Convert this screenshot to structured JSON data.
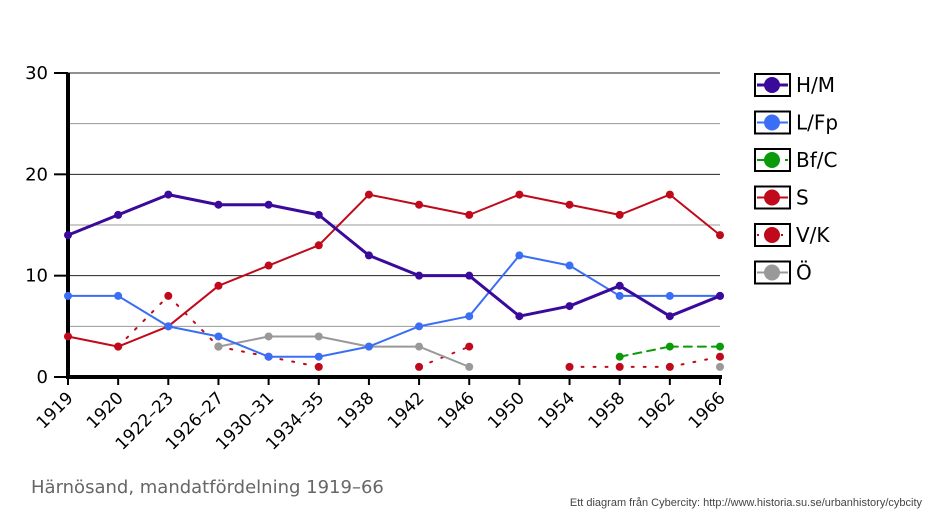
{
  "chart_data": {
    "type": "line",
    "subtitle": "Härnösand, mandatfördelning 1919–66",
    "credit": "Ett diagram från Cybercity: http://www.historia.su.se/urbanhistory/cybcity",
    "categories": [
      "1919",
      "1920",
      "1922–23",
      "1926–27",
      "1930–31",
      "1934–35",
      "1938",
      "1942",
      "1946",
      "1950",
      "1954",
      "1958",
      "1962",
      "1966"
    ],
    "ylim": [
      0,
      30
    ],
    "yticks": [
      0,
      10,
      20,
      30
    ],
    "grid": true,
    "legend": "right",
    "series": [
      {
        "name": "H/M",
        "color": "#3a0a9a",
        "style": "solid",
        "width": 3,
        "values": [
          14,
          16,
          18,
          17,
          17,
          16,
          12,
          10,
          10,
          6,
          7,
          9,
          6,
          8
        ]
      },
      {
        "name": "L/Fp",
        "color": "#3a6ef5",
        "style": "solid",
        "width": 2,
        "values": [
          8,
          8,
          5,
          4,
          2,
          2,
          3,
          5,
          6,
          12,
          11,
          8,
          8,
          8
        ]
      },
      {
        "name": "Bf/C",
        "color": "#0a9a0a",
        "style": "dashed",
        "width": 2,
        "values": [
          null,
          null,
          null,
          null,
          null,
          null,
          null,
          null,
          null,
          null,
          null,
          2,
          3,
          3
        ]
      },
      {
        "name": "S",
        "color": "#c0091a",
        "style": "solid",
        "width": 2,
        "values": [
          4,
          3,
          5,
          9,
          11,
          13,
          18,
          17,
          16,
          18,
          17,
          16,
          18,
          14
        ]
      },
      {
        "name": "V/K",
        "color": "#c0091a",
        "style": "dotted",
        "width": 2,
        "values": [
          null,
          3,
          8,
          3,
          2,
          1,
          null,
          1,
          3,
          null,
          1,
          1,
          1,
          2
        ]
      },
      {
        "name": "Ö",
        "color": "#999999",
        "style": "solid",
        "width": 2,
        "values": [
          null,
          null,
          null,
          3,
          4,
          4,
          3,
          3,
          1,
          null,
          null,
          null,
          null,
          1
        ]
      }
    ]
  }
}
